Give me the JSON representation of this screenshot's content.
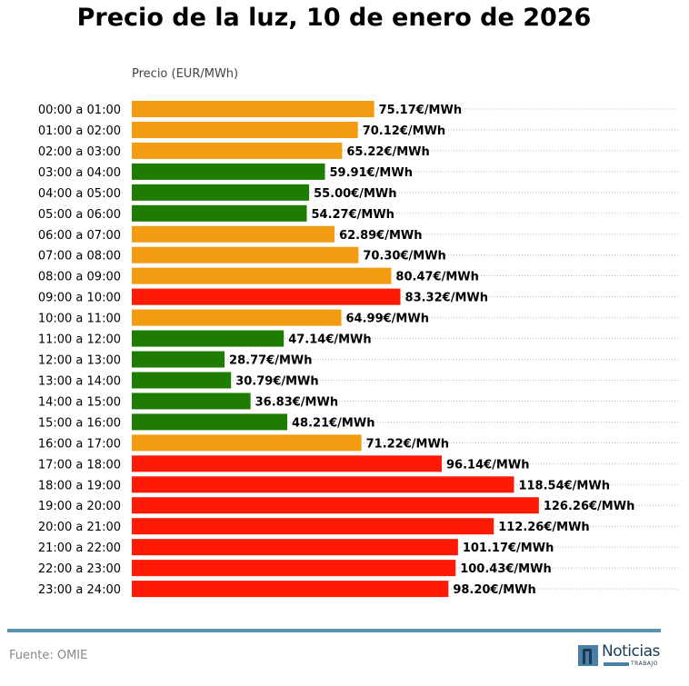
{
  "chart_data": {
    "type": "bar",
    "orientation": "horizontal",
    "title": "Precio de la luz, 10 de enero de 2026",
    "xlabel": "Precio (EUR/MWh)",
    "xlim": [
      0,
      170
    ],
    "grid": "dotted horizontal lines",
    "value_suffix": "€/MWh",
    "categories": [
      "00:00 a 01:00",
      "01:00 a 02:00",
      "02:00 a 03:00",
      "03:00 a 04:00",
      "04:00 a 05:00",
      "05:00 a 06:00",
      "06:00 a 07:00",
      "07:00 a 08:00",
      "08:00 a 09:00",
      "09:00 a 10:00",
      "10:00 a 11:00",
      "11:00 a 12:00",
      "12:00 a 13:00",
      "13:00 a 14:00",
      "14:00 a 15:00",
      "15:00 a 16:00",
      "16:00 a 17:00",
      "17:00 a 18:00",
      "18:00 a 19:00",
      "19:00 a 20:00",
      "20:00 a 21:00",
      "21:00 a 22:00",
      "22:00 a 23:00",
      "23:00 a 24:00"
    ],
    "values": [
      75.17,
      70.12,
      65.22,
      59.91,
      55.0,
      54.27,
      62.89,
      70.3,
      80.47,
      83.32,
      64.99,
      47.14,
      28.77,
      30.79,
      36.83,
      48.21,
      71.22,
      96.14,
      118.54,
      126.26,
      112.26,
      101.17,
      100.43,
      98.2
    ],
    "bar_levels": [
      "mid",
      "mid",
      "mid",
      "low",
      "low",
      "low",
      "mid",
      "mid",
      "mid",
      "high",
      "mid",
      "low",
      "low",
      "low",
      "low",
      "low",
      "mid",
      "high",
      "high",
      "high",
      "high",
      "high",
      "high",
      "high"
    ],
    "colors": {
      "low": "#1e7d00",
      "mid": "#f39c12",
      "high": "#ff1a05"
    }
  },
  "footer": {
    "source": "Fuente: OMIE",
    "logo_text": "Noticias",
    "logo_sub": "TRABAJO"
  }
}
